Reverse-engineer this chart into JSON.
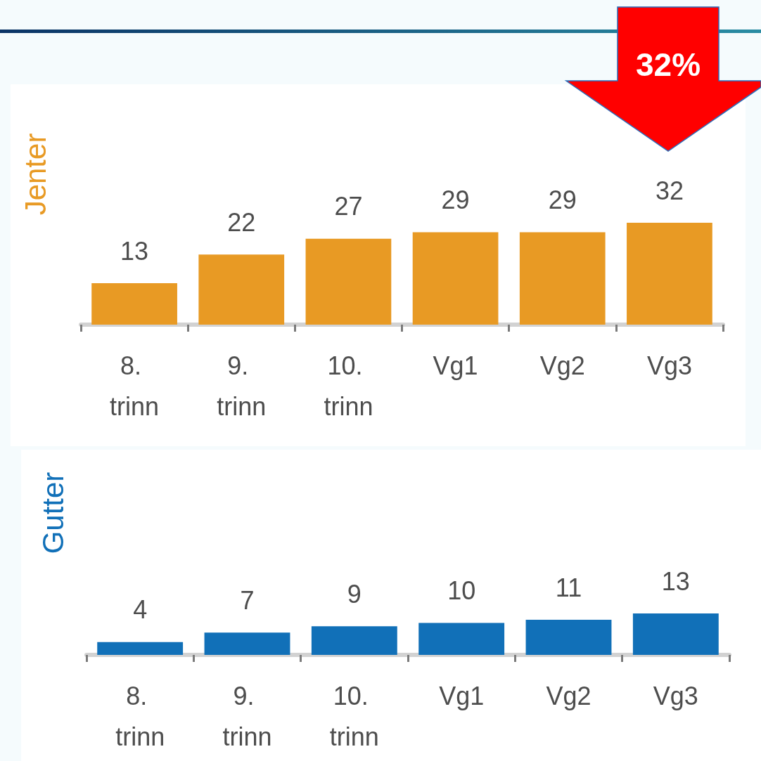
{
  "chart_data": [
    {
      "type": "bar",
      "ylabel": "Jenter",
      "categories": [
        "8. trinn",
        "9. trinn",
        "10. trinn",
        "Vg1",
        "Vg2",
        "Vg3"
      ],
      "values": [
        13,
        22,
        27,
        29,
        29,
        32
      ],
      "color": "#e89a24",
      "data_labels": true,
      "tick_labels": "x",
      "annotations": [
        "32%"
      ]
    },
    {
      "type": "bar",
      "ylabel": "Gutter",
      "categories": [
        "8. trinn",
        "9. trinn",
        "10. trinn",
        "Vg1",
        "Vg2",
        "Vg3"
      ],
      "values": [
        4,
        7,
        9,
        10,
        11,
        13
      ],
      "color": "#1170b8",
      "data_labels": true,
      "tick_labels": "x"
    }
  ]
}
